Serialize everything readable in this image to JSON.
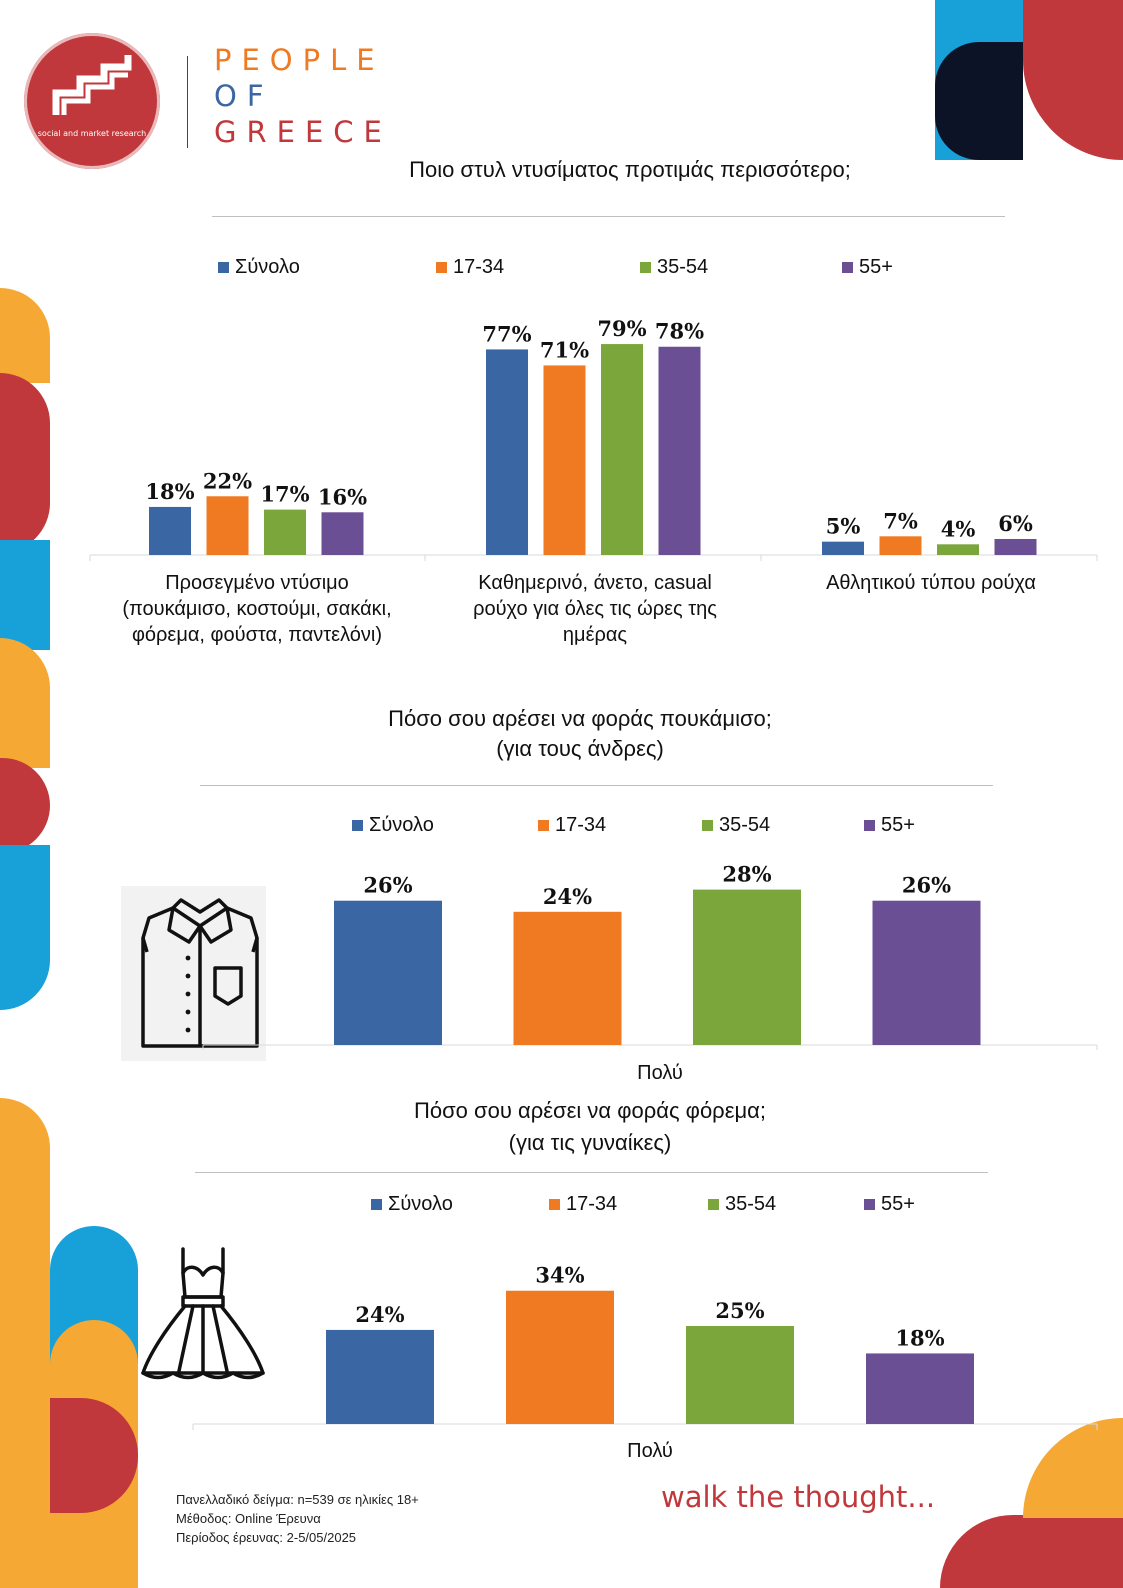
{
  "brand": {
    "logo_tag": "social and market research",
    "line1": "PEOPLE",
    "line2": "OF",
    "line3": "GREECE",
    "tagline": "walk the thought..."
  },
  "colors": {
    "Σύνολο": "#3a67a3",
    "17-34": "#ef7a22",
    "35-54": "#7aa63c",
    "55+": "#6a4f94",
    "red": "#c0383b",
    "orange": "#f5a833",
    "blue": "#17a1d8",
    "navy": "#0d1326"
  },
  "icons": {
    "shirt": "shirt-icon",
    "dress": "dress-icon"
  },
  "legend": [
    "Σύνολο",
    "17-34",
    "35-54",
    "55+"
  ],
  "chart_data": [
    {
      "type": "bar",
      "title": "Ποιο στυλ ντυσίματος προτιμάς περισσότερο;",
      "categories": [
        "Προσεγμένο ντύσιμο (πουκάμισο, κοστούμι, σακάκι, φόρεμα, φούστα, παντελόνι)",
        "Καθημερινό, άνετο, casual ρούχο για όλες τις ώρες της ημέρας",
        "Αθλητικού τύπου ρούχα"
      ],
      "category_lines": [
        [
          "Προσεγμένο ντύσιμο",
          "(πουκάμισο, κοστούμι, σακάκι,",
          "φόρεμα, φούστα, παντελόνι)"
        ],
        [
          "Καθημερινό, άνετο, casual",
          "ρούχο για όλες τις ώρες της",
          "ημέρας"
        ],
        [
          "Αθλητικού τύπου ρούχα"
        ]
      ],
      "series": [
        {
          "name": "Σύνολο",
          "values": [
            18,
            77,
            5
          ]
        },
        {
          "name": "17-34",
          "values": [
            22,
            71,
            7
          ]
        },
        {
          "name": "35-54",
          "values": [
            17,
            79,
            4
          ]
        },
        {
          "name": "55+",
          "values": [
            16,
            78,
            6
          ]
        }
      ],
      "unit": "%",
      "legend_position": "top"
    },
    {
      "type": "bar",
      "title": "Πόσο σου αρέσει να φοράς πουκάμισο;",
      "subtitle": "(για τους άνδρες)",
      "categories": [
        "Πολύ"
      ],
      "series": [
        {
          "name": "Σύνολο",
          "values": [
            26
          ]
        },
        {
          "name": "17-34",
          "values": [
            24
          ]
        },
        {
          "name": "35-54",
          "values": [
            28
          ]
        },
        {
          "name": "55+",
          "values": [
            26
          ]
        }
      ],
      "unit": "%",
      "legend_position": "top"
    },
    {
      "type": "bar",
      "title": "Πόσο σου αρέσει να φοράς φόρεμα;",
      "subtitle": "(για τις γυναίκες)",
      "categories": [
        "Πολύ"
      ],
      "series": [
        {
          "name": "Σύνολο",
          "values": [
            24
          ]
        },
        {
          "name": "17-34",
          "values": [
            34
          ]
        },
        {
          "name": "35-54",
          "values": [
            25
          ]
        },
        {
          "name": "55+",
          "values": [
            18
          ]
        }
      ],
      "unit": "%",
      "legend_position": "top"
    }
  ],
  "footnote": {
    "line1": "Πανελλαδικό δείγμα: n=539 σε ηλικίες 18+",
    "line2": "Μέθοδος: Online Έρευνα",
    "line3": "Περίοδος έρευνας: 2-5/05/2025"
  }
}
